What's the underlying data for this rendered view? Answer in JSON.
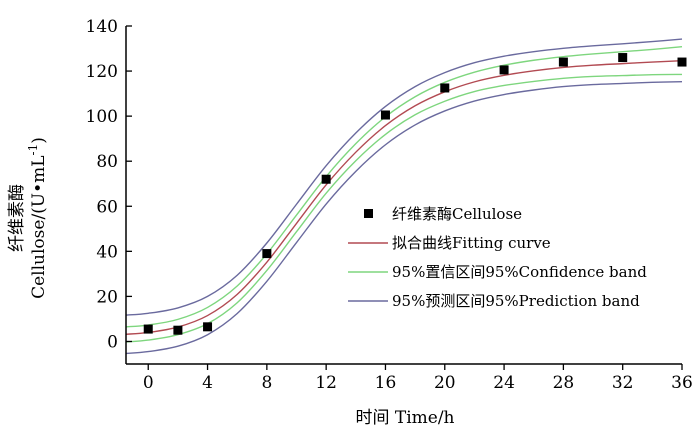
{
  "chart_data": {
    "type": "scatter",
    "xlabel": "时间  Time/h",
    "ylabel_cn": "纤维素酶",
    "ylabel_en": "Cellulose/(U•mL",
    "ylabel_sup": "-1",
    "ylabel_close": ")",
    "xlim": [
      -1.5,
      36
    ],
    "ylim": [
      -10,
      140
    ],
    "xticks": [
      0,
      4,
      8,
      12,
      16,
      20,
      24,
      28,
      32,
      36
    ],
    "yticks": [
      0,
      20,
      40,
      60,
      80,
      100,
      120,
      140
    ],
    "legend_position": "center-right",
    "series": [
      {
        "name": "纤维素酶Cellulose",
        "kind": "points",
        "color": "#000000",
        "x": [
          0,
          2,
          4,
          8,
          12,
          16,
          20,
          24,
          28,
          32,
          36
        ],
        "y": [
          5.5,
          5,
          6.5,
          39,
          72,
          100.5,
          112.5,
          120.5,
          124,
          126,
          124
        ]
      },
      {
        "name": "拟合曲线Fitting curve",
        "kind": "line",
        "color": "#b24a52",
        "x": [
          -1.5,
          0,
          2,
          4,
          6,
          8,
          10,
          12,
          14,
          16,
          18,
          20,
          22,
          24,
          26,
          28,
          30,
          32,
          34,
          36
        ],
        "y": [
          3.2,
          4.0,
          6.4,
          11.5,
          20.9,
          35.2,
          52.4,
          69.5,
          84.0,
          95.8,
          104.6,
          110.8,
          115.2,
          118.1,
          120.1,
          121.6,
          122.6,
          123.3,
          124.0,
          124.6
        ]
      },
      {
        "name": "95%置信区间95%Confidence band",
        "kind": "line",
        "color": "#7ed67e",
        "x": [
          -1.5,
          0,
          2,
          4,
          6,
          8,
          10,
          12,
          14,
          16,
          18,
          20,
          22,
          24,
          26,
          28,
          30,
          32,
          34,
          36
        ],
        "y": [
          6.5,
          7.3,
          9.8,
          15.1,
          24.6,
          38.9,
          56.1,
          73.2,
          87.8,
          99.7,
          108.6,
          115.0,
          119.5,
          122.6,
          124.8,
          126.4,
          127.6,
          128.6,
          129.6,
          130.8
        ]
      },
      {
        "name": "95%置信区间95%Confidence band (lower)",
        "kind": "line",
        "color": "#7ed67e",
        "x": [
          -1.5,
          0,
          2,
          4,
          6,
          8,
          10,
          12,
          14,
          16,
          18,
          20,
          22,
          24,
          26,
          28,
          30,
          32,
          34,
          36
        ],
        "y": [
          -0.2,
          0.6,
          3.0,
          7.9,
          17.2,
          31.5,
          48.7,
          65.8,
          80.2,
          91.9,
          100.6,
          106.6,
          110.9,
          113.6,
          115.4,
          116.8,
          117.6,
          118.0,
          118.4,
          118.5
        ]
      },
      {
        "name": "95%预测区间95%Prediction band",
        "kind": "line",
        "color": "#6a6a9e",
        "x": [
          -1.5,
          0,
          2,
          4,
          6,
          8,
          10,
          12,
          14,
          16,
          18,
          20,
          22,
          24,
          26,
          28,
          30,
          32,
          34,
          36
        ],
        "y": [
          11.7,
          12.5,
          14.9,
          20.0,
          29.4,
          43.7,
          60.9,
          78.0,
          92.5,
          104.3,
          113.1,
          119.3,
          123.7,
          126.6,
          128.6,
          130.1,
          131.2,
          132.1,
          133.1,
          134.2
        ]
      },
      {
        "name": "95%预测区间95%Prediction band (lower)",
        "kind": "line",
        "color": "#6a6a9e",
        "x": [
          -1.5,
          0,
          2,
          4,
          6,
          8,
          10,
          12,
          14,
          16,
          18,
          20,
          22,
          24,
          26,
          28,
          30,
          32,
          34,
          36
        ],
        "y": [
          -5.3,
          -4.5,
          -2.1,
          3.0,
          12.4,
          26.7,
          43.9,
          61.0,
          75.5,
          87.3,
          96.1,
          102.3,
          106.7,
          109.6,
          111.6,
          113.1,
          114.0,
          114.5,
          115.0,
          115.3
        ]
      }
    ],
    "legend": [
      {
        "label": "纤维素酶Cellulose",
        "marker": "square",
        "color": "#000000"
      },
      {
        "label": "拟合曲线Fitting curve",
        "marker": "line",
        "color": "#b24a52"
      },
      {
        "label": "95%置信区间95%Confidence band",
        "marker": "line",
        "color": "#7ed67e"
      },
      {
        "label": "95%预测区间95%Prediction band",
        "marker": "line",
        "color": "#6a6a9e"
      }
    ]
  }
}
